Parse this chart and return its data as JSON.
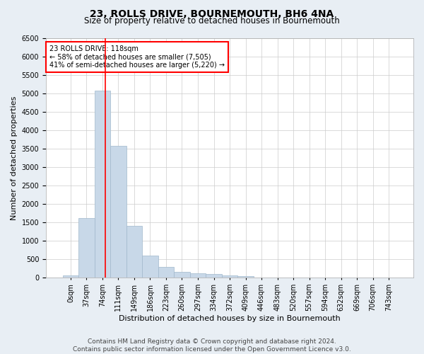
{
  "title": "23, ROLLS DRIVE, BOURNEMOUTH, BH6 4NA",
  "subtitle": "Size of property relative to detached houses in Bournemouth",
  "xlabel": "Distribution of detached houses by size in Bournemouth",
  "ylabel": "Number of detached properties",
  "bin_labels": [
    "0sqm",
    "37sqm",
    "74sqm",
    "111sqm",
    "149sqm",
    "186sqm",
    "223sqm",
    "260sqm",
    "297sqm",
    "334sqm",
    "372sqm",
    "409sqm",
    "446sqm",
    "483sqm",
    "520sqm",
    "557sqm",
    "594sqm",
    "632sqm",
    "669sqm",
    "706sqm",
    "743sqm"
  ],
  "bar_heights": [
    70,
    1620,
    5080,
    3580,
    1410,
    600,
    290,
    155,
    120,
    95,
    55,
    35,
    15,
    5,
    3,
    2,
    1,
    1,
    0,
    0,
    0
  ],
  "bar_color": "#c8d8e8",
  "bar_edgecolor": "#a0b8cc",
  "vline_color": "red",
  "vline_pos": 2.19,
  "annotation_title": "23 ROLLS DRIVE: 118sqm",
  "annotation_line1": "← 58% of detached houses are smaller (7,505)",
  "annotation_line2": "41% of semi-detached houses are larger (5,220) →",
  "annotation_box_color": "white",
  "annotation_box_edgecolor": "red",
  "ylim": [
    0,
    6500
  ],
  "yticks": [
    0,
    500,
    1000,
    1500,
    2000,
    2500,
    3000,
    3500,
    4000,
    4500,
    5000,
    5500,
    6000,
    6500
  ],
  "footer_line1": "Contains HM Land Registry data © Crown copyright and database right 2024.",
  "footer_line2": "Contains public sector information licensed under the Open Government Licence v3.0.",
  "bg_color": "#e8eef4",
  "plot_bg_color": "#ffffff",
  "title_fontsize": 10,
  "subtitle_fontsize": 8.5,
  "axis_label_fontsize": 8,
  "tick_fontsize": 7,
  "footer_fontsize": 6.5
}
